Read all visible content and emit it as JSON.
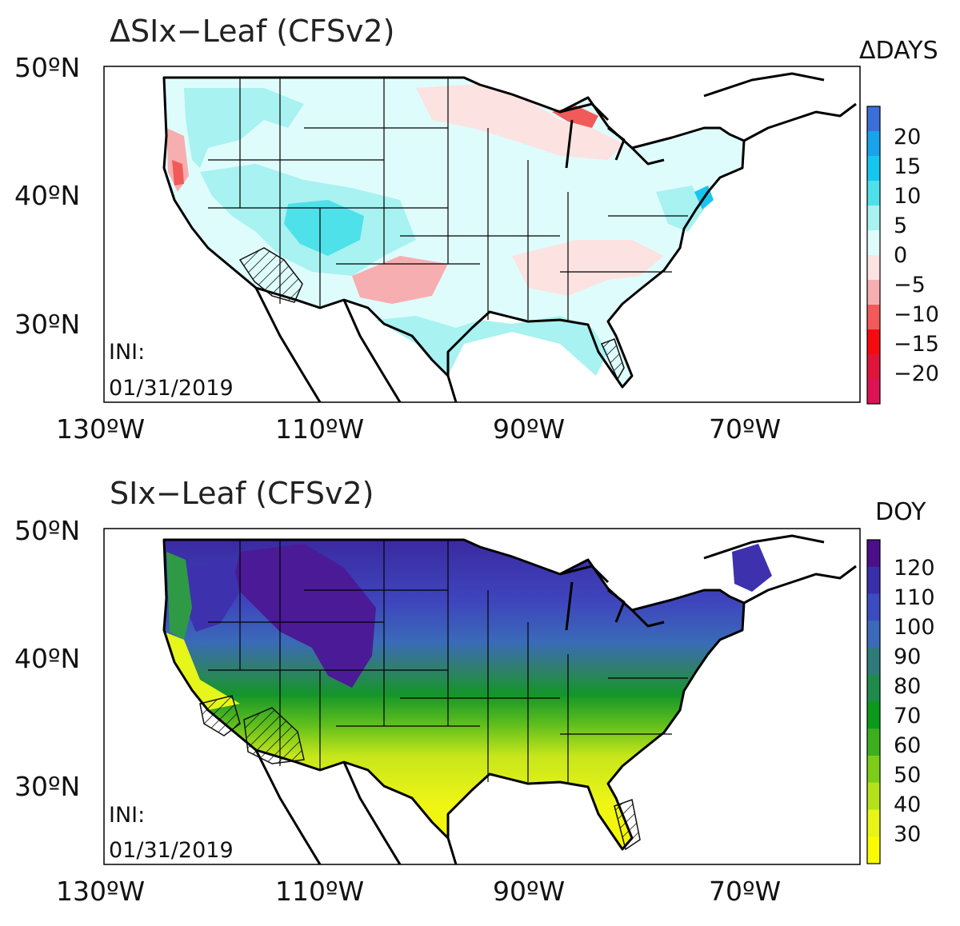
{
  "panels": [
    {
      "title": "ΔSIx−Leaf (CFSv2)",
      "colorbar_title": "ΔDAYS",
      "ini_label": "INI:",
      "ini_date": "01/31/2019",
      "lat_labels": [
        "50ºN",
        "40ºN",
        "30ºN"
      ],
      "lon_labels": [
        "130ºW",
        "110ºW",
        "90ºW",
        "70ºW"
      ],
      "colorbar_labels": [
        "20",
        "15",
        "10",
        "5",
        "0",
        "−5",
        "−10",
        "−15",
        "−20"
      ],
      "colorbar_colors": [
        "#3a6fd8",
        "#1aa3ea",
        "#16c6ee",
        "#4fe1ea",
        "#a8f2f1",
        "#dffcfc",
        "#fde2e2",
        "#f6aeb0",
        "#f25a5a",
        "#f50a10",
        "#e0153c",
        "#dc1456"
      ]
    },
    {
      "title": "SIx−Leaf (CFSv2)",
      "colorbar_title": "DOY",
      "ini_label": "INI:",
      "ini_date": "01/31/2019",
      "lat_labels": [
        "50ºN",
        "40ºN",
        "30ºN"
      ],
      "lon_labels": [
        "130ºW",
        "110ºW",
        "90ºW",
        "70ºW"
      ],
      "colorbar_labels": [
        "120",
        "110",
        "100",
        "90",
        "80",
        "70",
        "60",
        "50",
        "40",
        "30"
      ],
      "colorbar_colors": [
        "#4b0f8a",
        "#3a2fa8",
        "#3b4cc0",
        "#3a6ab8",
        "#2f7a7a",
        "#1f8a4a",
        "#0a9a1a",
        "#3caf1e",
        "#7ccc18",
        "#b4e21a",
        "#e8f416",
        "#fafa00"
      ]
    }
  ]
}
